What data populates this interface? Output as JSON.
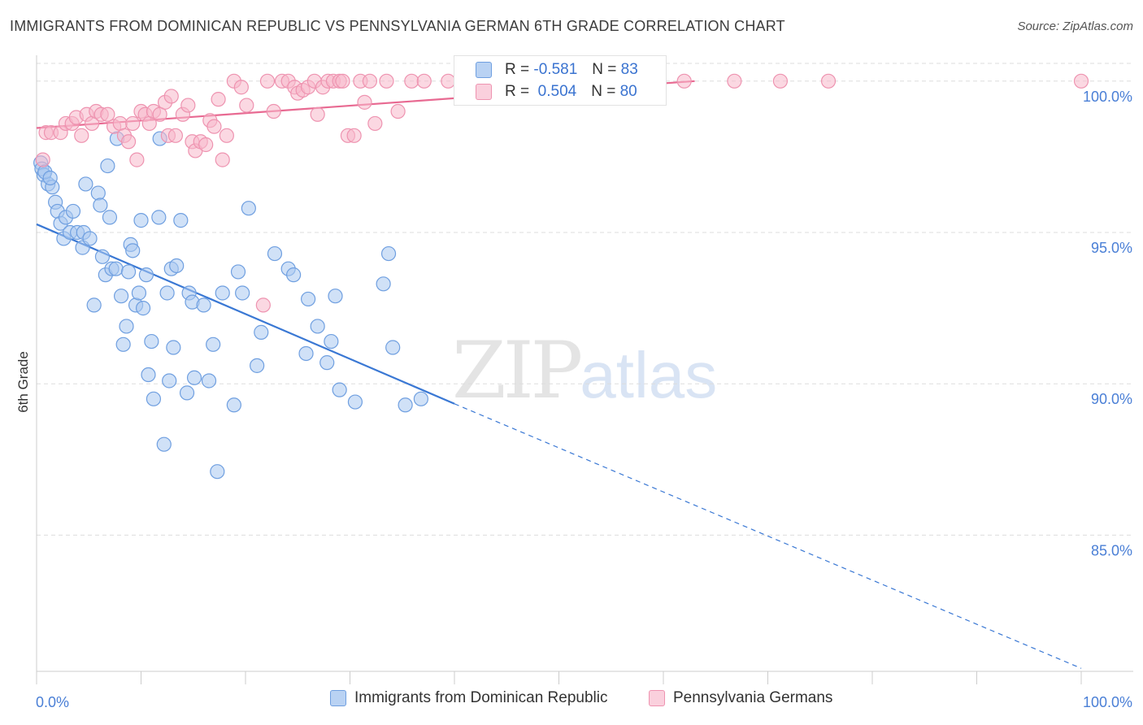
{
  "header": {
    "title": "IMMIGRANTS FROM DOMINICAN REPUBLIC VS PENNSYLVANIA GERMAN 6TH GRADE CORRELATION CHART",
    "source": "Source: ZipAtlas.com"
  },
  "watermark": {
    "part1": "ZIP",
    "part2": "atlas"
  },
  "stats": {
    "rows": [
      {
        "r_label": "R =",
        "r_value": "-0.581",
        "n_label": "N =",
        "n_value": "83"
      },
      {
        "r_label": "R =",
        "r_value": "0.504",
        "n_label": "N =",
        "n_value": "80"
      }
    ]
  },
  "legend": {
    "items": [
      {
        "label": "Immigrants from Dominican Republic"
      },
      {
        "label": "Pennsylvania Germans"
      }
    ]
  },
  "colors": {
    "blue_fill": "#a9c8f0",
    "blue_stroke": "#6f9fe0",
    "blue_line": "#3a78d4",
    "pink_fill": "#f7b8cb",
    "pink_stroke": "#ee93b0",
    "pink_line": "#e86a92",
    "grid": "#dddddd",
    "tick_text": "#4a7fd6"
  },
  "chart_data": {
    "type": "scatter",
    "title": "IMMIGRANTS FROM DOMINICAN REPUBLIC VS PENNSYLVANIA GERMAN 6TH GRADE CORRELATION CHART",
    "xlabel": "",
    "ylabel": "6th Grade",
    "xlim": [
      0,
      100
    ],
    "ylim": [
      80.5,
      100.8
    ],
    "x_tick_labels": [
      "0.0%",
      "100.0%"
    ],
    "y_ticks": [
      85,
      90,
      95,
      100
    ],
    "y_tick_labels": [
      "85.0%",
      "90.0%",
      "95.0%",
      "100.0%"
    ],
    "grid": true,
    "legend_position": "bottom",
    "series": [
      {
        "name": "Immigrants from Dominican Republic",
        "color": "#a9c8f0",
        "points": [
          [
            0.4,
            97.3
          ],
          [
            0.5,
            97.1
          ],
          [
            0.7,
            96.9
          ],
          [
            1.1,
            96.6
          ],
          [
            1.5,
            96.5
          ],
          [
            1.8,
            96.0
          ],
          [
            2.0,
            95.7
          ],
          [
            2.3,
            95.3
          ],
          [
            2.6,
            94.8
          ],
          [
            2.8,
            95.5
          ],
          [
            3.2,
            95.0
          ],
          [
            3.5,
            95.7
          ],
          [
            3.9,
            95.0
          ],
          [
            4.4,
            94.5
          ],
          [
            4.5,
            95.0
          ],
          [
            4.7,
            96.6
          ],
          [
            5.1,
            94.8
          ],
          [
            5.5,
            92.6
          ],
          [
            5.9,
            96.3
          ],
          [
            6.1,
            95.9
          ],
          [
            6.3,
            94.2
          ],
          [
            6.6,
            93.6
          ],
          [
            6.8,
            97.2
          ],
          [
            7.0,
            95.5
          ],
          [
            7.2,
            93.8
          ],
          [
            7.6,
            93.8
          ],
          [
            7.7,
            98.1
          ],
          [
            8.1,
            92.9
          ],
          [
            8.3,
            91.3
          ],
          [
            8.6,
            91.9
          ],
          [
            8.8,
            93.7
          ],
          [
            9.0,
            94.6
          ],
          [
            9.2,
            94.4
          ],
          [
            9.5,
            92.6
          ],
          [
            9.8,
            93.0
          ],
          [
            10.0,
            95.4
          ],
          [
            10.2,
            92.5
          ],
          [
            10.5,
            93.6
          ],
          [
            10.7,
            90.3
          ],
          [
            11.0,
            91.4
          ],
          [
            11.2,
            89.5
          ],
          [
            11.7,
            95.5
          ],
          [
            11.8,
            98.1
          ],
          [
            12.2,
            88.0
          ],
          [
            12.5,
            93.0
          ],
          [
            12.7,
            90.1
          ],
          [
            12.9,
            93.8
          ],
          [
            13.1,
            91.2
          ],
          [
            13.4,
            93.9
          ],
          [
            13.8,
            95.4
          ],
          [
            14.4,
            89.7
          ],
          [
            14.6,
            93.0
          ],
          [
            14.9,
            92.7
          ],
          [
            15.1,
            90.2
          ],
          [
            16.0,
            92.6
          ],
          [
            16.5,
            90.1
          ],
          [
            16.9,
            91.3
          ],
          [
            17.3,
            87.1
          ],
          [
            17.8,
            93.0
          ],
          [
            18.9,
            89.3
          ],
          [
            19.3,
            93.7
          ],
          [
            19.7,
            93.0
          ],
          [
            20.3,
            95.8
          ],
          [
            21.1,
            90.6
          ],
          [
            21.5,
            91.7
          ],
          [
            22.8,
            94.3
          ],
          [
            24.1,
            93.8
          ],
          [
            24.6,
            93.6
          ],
          [
            25.8,
            91.0
          ],
          [
            26.0,
            92.8
          ],
          [
            26.9,
            91.9
          ],
          [
            27.8,
            90.7
          ],
          [
            28.2,
            91.4
          ],
          [
            28.6,
            92.9
          ],
          [
            29.0,
            89.8
          ],
          [
            30.5,
            89.4
          ],
          [
            33.2,
            93.3
          ],
          [
            33.7,
            94.3
          ],
          [
            34.1,
            91.2
          ],
          [
            35.3,
            89.3
          ],
          [
            36.8,
            89.5
          ],
          [
            0.8,
            97.0
          ],
          [
            1.3,
            96.8
          ]
        ]
      },
      {
        "name": "Pennsylvania Germans",
        "color": "#f7b8cb",
        "points": [
          [
            0.6,
            97.4
          ],
          [
            0.9,
            98.3
          ],
          [
            1.4,
            98.3
          ],
          [
            2.3,
            98.3
          ],
          [
            2.8,
            98.6
          ],
          [
            3.4,
            98.6
          ],
          [
            3.8,
            98.8
          ],
          [
            4.3,
            98.2
          ],
          [
            4.8,
            98.9
          ],
          [
            5.3,
            98.6
          ],
          [
            5.7,
            99.0
          ],
          [
            6.2,
            98.9
          ],
          [
            6.8,
            98.9
          ],
          [
            7.4,
            98.5
          ],
          [
            8.0,
            98.6
          ],
          [
            8.4,
            98.2
          ],
          [
            8.8,
            98.0
          ],
          [
            9.2,
            98.6
          ],
          [
            9.6,
            97.4
          ],
          [
            10.0,
            99.0
          ],
          [
            10.4,
            98.9
          ],
          [
            10.8,
            98.6
          ],
          [
            11.2,
            99.0
          ],
          [
            11.8,
            98.9
          ],
          [
            12.3,
            99.3
          ],
          [
            12.6,
            98.2
          ],
          [
            12.9,
            99.5
          ],
          [
            13.3,
            98.2
          ],
          [
            14.0,
            98.9
          ],
          [
            14.5,
            99.2
          ],
          [
            14.9,
            98.0
          ],
          [
            15.2,
            97.7
          ],
          [
            15.7,
            98.0
          ],
          [
            16.2,
            97.9
          ],
          [
            16.6,
            98.7
          ],
          [
            17.0,
            98.5
          ],
          [
            17.4,
            99.4
          ],
          [
            17.8,
            97.4
          ],
          [
            18.2,
            98.2
          ],
          [
            18.9,
            100.0
          ],
          [
            19.6,
            99.8
          ],
          [
            20.1,
            99.2
          ],
          [
            21.7,
            92.6
          ],
          [
            22.1,
            100.0
          ],
          [
            22.7,
            99.0
          ],
          [
            23.5,
            100.0
          ],
          [
            24.1,
            100.0
          ],
          [
            24.7,
            99.8
          ],
          [
            25.0,
            99.6
          ],
          [
            25.5,
            99.7
          ],
          [
            26.0,
            99.8
          ],
          [
            26.6,
            100.0
          ],
          [
            26.9,
            98.9
          ],
          [
            27.4,
            99.8
          ],
          [
            27.9,
            100.0
          ],
          [
            28.4,
            100.0
          ],
          [
            29.0,
            100.0
          ],
          [
            29.3,
            100.0
          ],
          [
            29.8,
            98.2
          ],
          [
            30.4,
            98.2
          ],
          [
            31.0,
            100.0
          ],
          [
            31.4,
            99.3
          ],
          [
            31.9,
            100.0
          ],
          [
            32.4,
            98.6
          ],
          [
            33.5,
            100.0
          ],
          [
            34.6,
            99.0
          ],
          [
            35.9,
            100.0
          ],
          [
            37.1,
            100.0
          ],
          [
            39.4,
            100.0
          ],
          [
            42.1,
            100.0
          ],
          [
            44.7,
            100.0
          ],
          [
            46.6,
            100.0
          ],
          [
            49.6,
            100.0
          ],
          [
            51.8,
            100.0
          ],
          [
            55.4,
            100.0
          ],
          [
            62.0,
            100.0
          ],
          [
            66.8,
            100.0
          ],
          [
            71.2,
            100.0
          ],
          [
            75.8,
            100.0
          ],
          [
            100.0,
            100.0
          ]
        ]
      }
    ],
    "trend_lines": [
      {
        "series": "Immigrants from Dominican Republic",
        "x_start": 0,
        "y_start": 95.27,
        "x_solid_end": 40,
        "y_solid_end": 89.34,
        "x_end": 100,
        "y_end": 80.6,
        "dashed_after_solid": true
      },
      {
        "series": "Pennsylvania Germans",
        "x_start": 0,
        "y_start": 98.45,
        "x_end": 63,
        "y_end": 100.0
      }
    ]
  }
}
